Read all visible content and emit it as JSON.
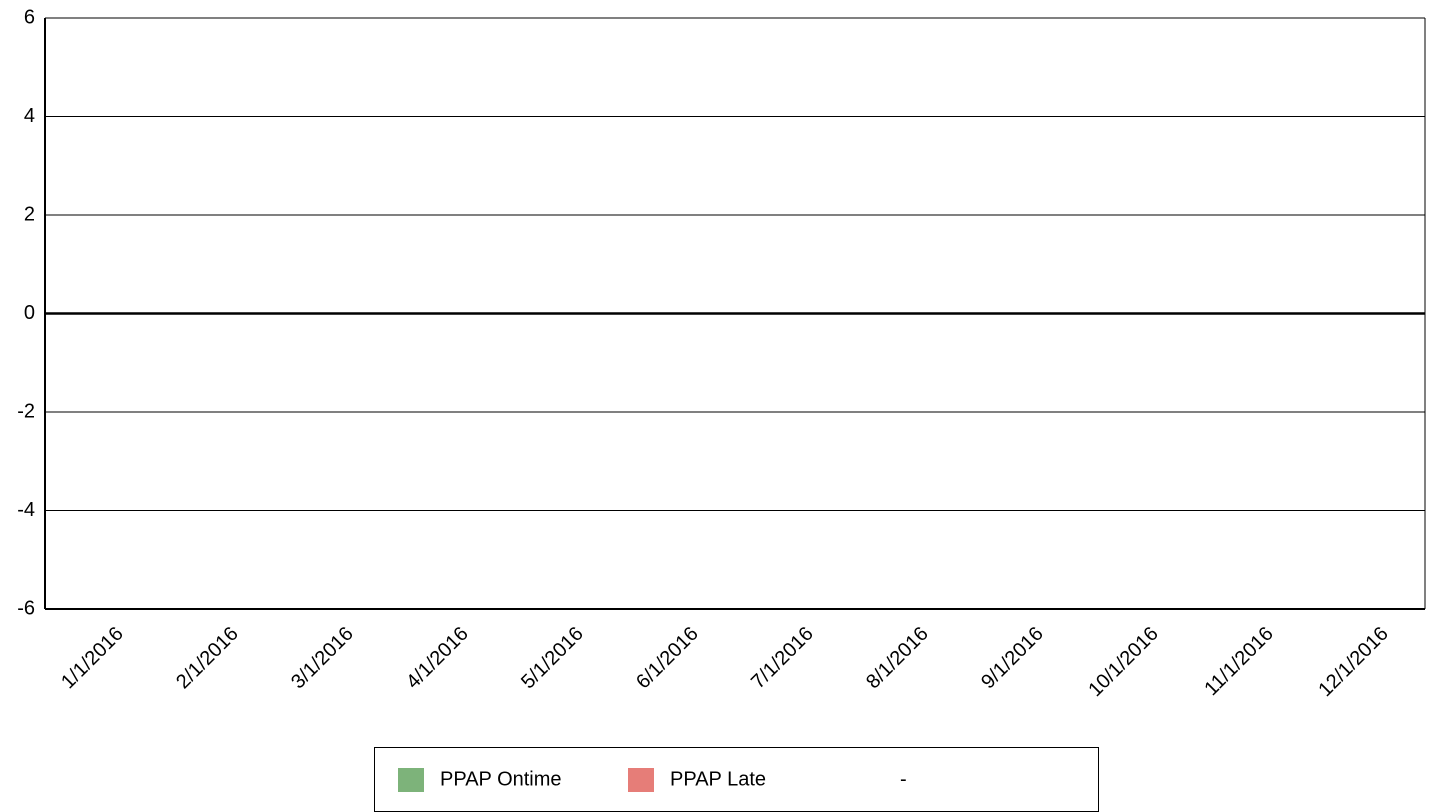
{
  "chart_data": {
    "type": "bar",
    "categories": [
      "1/1/2016",
      "2/1/2016",
      "3/1/2016",
      "4/1/2016",
      "5/1/2016",
      "6/1/2016",
      "7/1/2016",
      "8/1/2016",
      "9/1/2016",
      "10/1/2016",
      "11/1/2016",
      "12/1/2016"
    ],
    "series": [
      {
        "name": "PPAP Ontime",
        "color": "#7db37a",
        "values": [
          0,
          0,
          0,
          0,
          0,
          0,
          0,
          0,
          0,
          0,
          0,
          0
        ]
      },
      {
        "name": "PPAP Late",
        "color": "#e67d78",
        "values": [
          0,
          0,
          0,
          0,
          0,
          0,
          0,
          0,
          0,
          0,
          0,
          0
        ]
      },
      {
        "name": "-",
        "values": [
          0,
          0,
          0,
          0,
          0,
          0,
          0,
          0,
          0,
          0,
          0,
          0
        ]
      }
    ],
    "ylim": [
      -6,
      6
    ],
    "yticks": [
      -6,
      -4,
      -2,
      0,
      2,
      4,
      6
    ],
    "grid": true,
    "legend": "bottom"
  }
}
